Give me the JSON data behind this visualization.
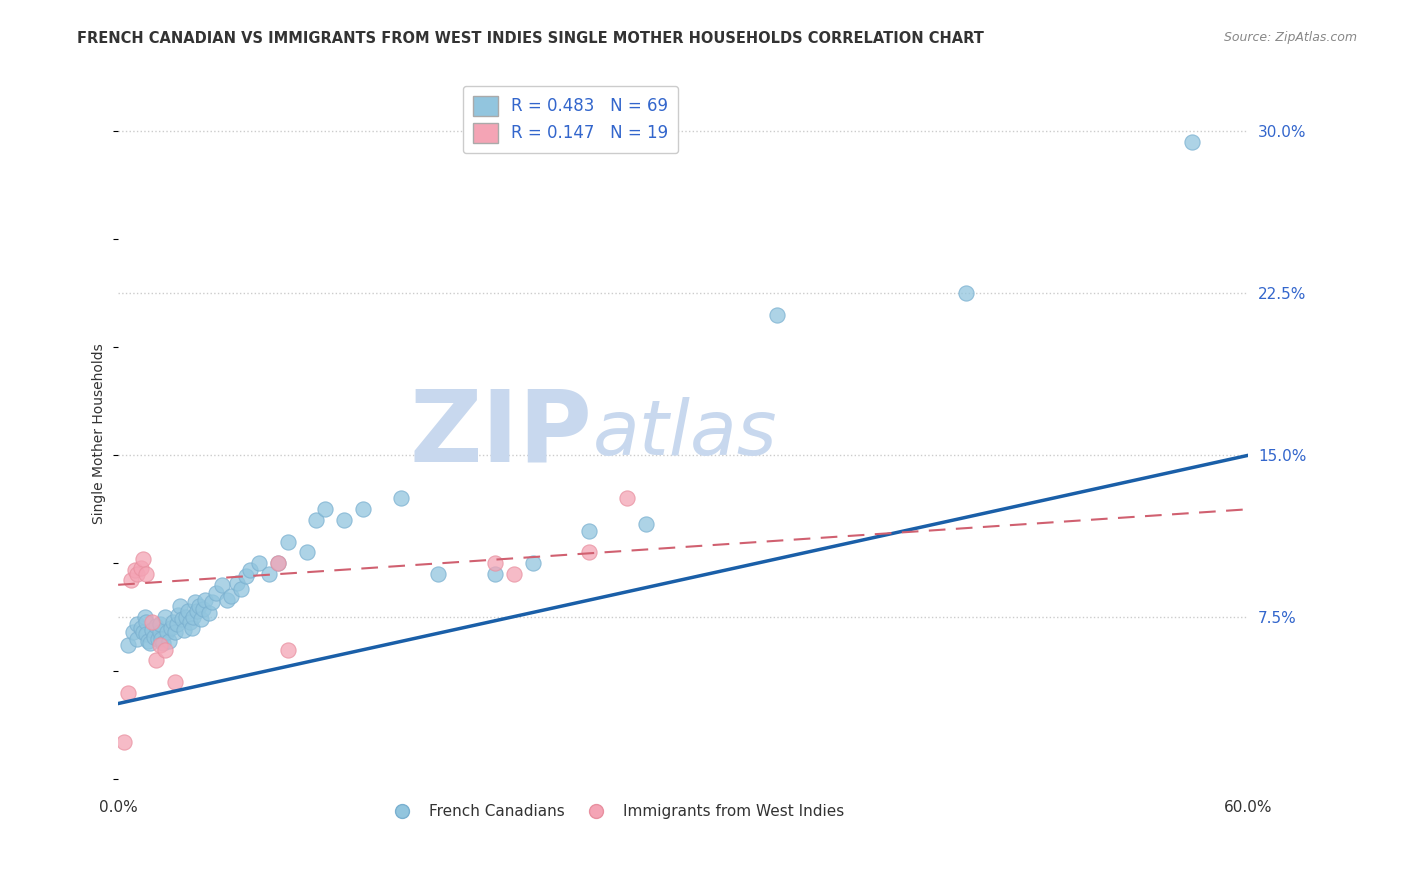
{
  "title": "FRENCH CANADIAN VS IMMIGRANTS FROM WEST INDIES SINGLE MOTHER HOUSEHOLDS CORRELATION CHART",
  "source": "Source: ZipAtlas.com",
  "ylabel": "Single Mother Households",
  "ytick_values": [
    0.0,
    0.075,
    0.15,
    0.225,
    0.3
  ],
  "ytick_labels": [
    "",
    "7.5%",
    "15.0%",
    "22.5%",
    "30.0%"
  ],
  "xlim": [
    0.0,
    0.6
  ],
  "ylim": [
    -0.005,
    0.325
  ],
  "legend_bottom_blue": "French Canadians",
  "legend_bottom_pink": "Immigrants from West Indies",
  "blue_R": 0.483,
  "blue_N": 69,
  "pink_R": 0.147,
  "pink_N": 19,
  "blue_scatter_x": [
    0.005,
    0.008,
    0.01,
    0.01,
    0.012,
    0.013,
    0.014,
    0.015,
    0.015,
    0.016,
    0.017,
    0.018,
    0.019,
    0.02,
    0.021,
    0.022,
    0.022,
    0.023,
    0.024,
    0.025,
    0.026,
    0.027,
    0.028,
    0.029,
    0.03,
    0.031,
    0.032,
    0.033,
    0.034,
    0.035,
    0.036,
    0.037,
    0.038,
    0.039,
    0.04,
    0.041,
    0.042,
    0.043,
    0.044,
    0.045,
    0.046,
    0.048,
    0.05,
    0.052,
    0.055,
    0.058,
    0.06,
    0.063,
    0.065,
    0.068,
    0.07,
    0.075,
    0.08,
    0.085,
    0.09,
    0.1,
    0.105,
    0.11,
    0.12,
    0.13,
    0.15,
    0.17,
    0.2,
    0.22,
    0.25,
    0.28,
    0.35,
    0.45,
    0.57
  ],
  "blue_scatter_y": [
    0.062,
    0.068,
    0.065,
    0.072,
    0.07,
    0.068,
    0.075,
    0.073,
    0.067,
    0.064,
    0.063,
    0.069,
    0.066,
    0.071,
    0.065,
    0.068,
    0.072,
    0.065,
    0.063,
    0.075,
    0.068,
    0.064,
    0.07,
    0.073,
    0.068,
    0.072,
    0.076,
    0.08,
    0.074,
    0.069,
    0.075,
    0.078,
    0.073,
    0.07,
    0.075,
    0.082,
    0.078,
    0.08,
    0.074,
    0.079,
    0.083,
    0.077,
    0.082,
    0.086,
    0.09,
    0.083,
    0.085,
    0.091,
    0.088,
    0.094,
    0.097,
    0.1,
    0.095,
    0.1,
    0.11,
    0.105,
    0.12,
    0.125,
    0.12,
    0.125,
    0.13,
    0.095,
    0.095,
    0.1,
    0.115,
    0.118,
    0.215,
    0.225,
    0.295
  ],
  "pink_scatter_x": [
    0.003,
    0.005,
    0.007,
    0.009,
    0.01,
    0.012,
    0.013,
    0.015,
    0.018,
    0.02,
    0.022,
    0.025,
    0.03,
    0.085,
    0.09,
    0.2,
    0.21,
    0.25,
    0.27
  ],
  "pink_scatter_y": [
    0.017,
    0.04,
    0.092,
    0.097,
    0.095,
    0.098,
    0.102,
    0.095,
    0.073,
    0.055,
    0.062,
    0.06,
    0.045,
    0.1,
    0.06,
    0.1,
    0.095,
    0.105,
    0.13
  ],
  "blue_line_x0": 0.0,
  "blue_line_x1": 0.6,
  "blue_line_y0": 0.035,
  "blue_line_y1": 0.15,
  "pink_line_x0": 0.0,
  "pink_line_x1": 0.6,
  "pink_line_y0": 0.09,
  "pink_line_y1": 0.125,
  "blue_scatter_color": "#92c5de",
  "blue_scatter_edge": "#7ab0d0",
  "pink_scatter_color": "#f4a4b5",
  "pink_scatter_edge": "#e890a0",
  "blue_line_color": "#1a5fa8",
  "pink_line_color": "#d06070",
  "watermark_zip_color": "#c8d8ee",
  "watermark_atlas_color": "#c8d8ee",
  "background_color": "#ffffff",
  "grid_color": "#cccccc",
  "grid_style": "dotted",
  "tick_label_color": "#3366cc",
  "title_color": "#333333",
  "source_color": "#888888"
}
